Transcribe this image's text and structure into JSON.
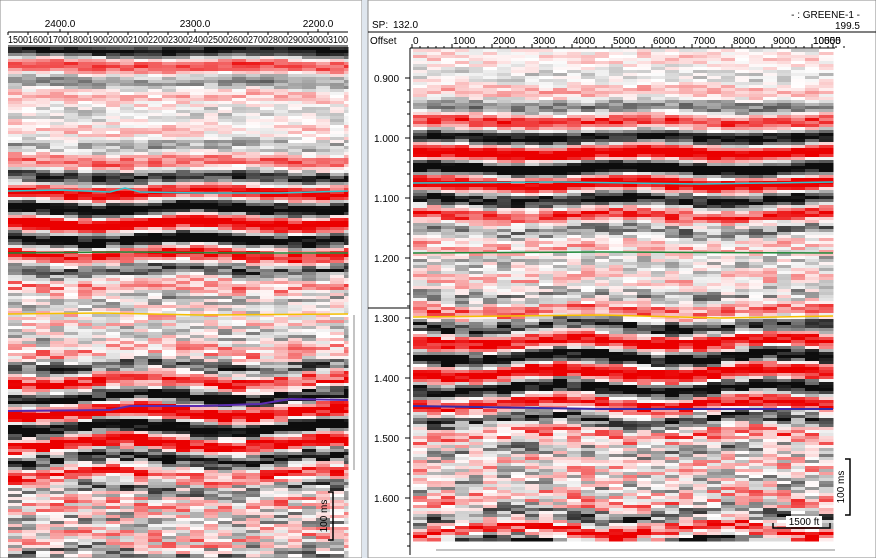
{
  "left_panel": {
    "top_labels": [
      "2400.0",
      "2300.0",
      "2200.0"
    ],
    "trace_labels": [
      "1500",
      "1600",
      "1700",
      "1800",
      "1900",
      "2000",
      "2100",
      "2200",
      "2300",
      "2400",
      "2500",
      "2600",
      "2700",
      "2800",
      "2900",
      "3000",
      "3100"
    ],
    "scale_label": "100 ms"
  },
  "right_panel": {
    "sp_label": "SP:",
    "sp_start": "132.0",
    "well_name": "- : GREENE-1 -",
    "sp_end": "199.5",
    "offset_label": "Offset",
    "offset_ticks": [
      "0",
      "1000",
      "2000",
      "3000",
      "4000",
      "5000",
      "6000",
      "7000",
      "8000",
      "9000",
      "10000",
      "10555"
    ],
    "time_ticks": [
      "0.900",
      "1.000",
      "1.100",
      "1.200",
      "1.300",
      "1.400",
      "1.500",
      "1.600"
    ],
    "scale_time": "100 ms",
    "scale_distance": "1500 ft"
  }
}
